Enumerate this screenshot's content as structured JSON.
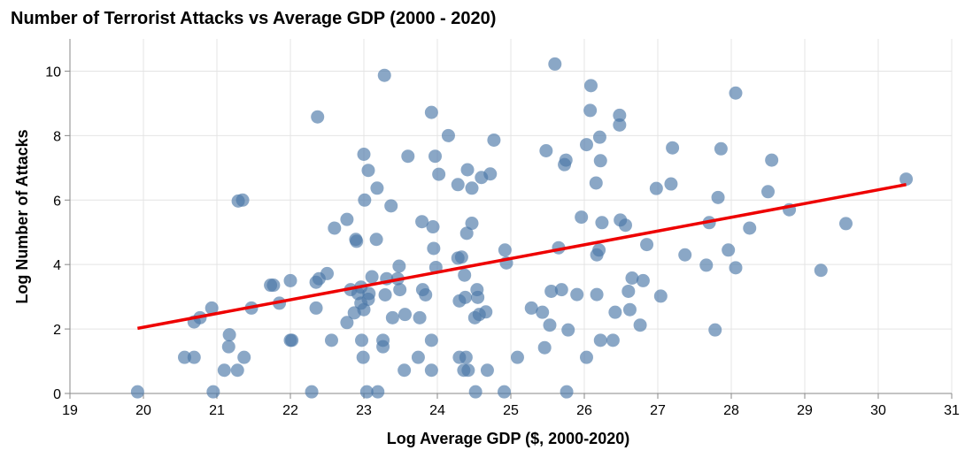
{
  "chart_data": {
    "type": "scatter",
    "title": "Number of Terrorist Attacks vs Average GDP (2000 - 2020)",
    "xlabel": "Log Average GDP ($, 2000-2020)",
    "ylabel": "Log Number of Attacks",
    "xlim": [
      19,
      31
    ],
    "ylim": [
      0,
      11
    ],
    "x_ticks": [
      19,
      20,
      21,
      22,
      23,
      24,
      25,
      26,
      27,
      28,
      29,
      30,
      31
    ],
    "y_ticks": [
      0,
      2,
      4,
      6,
      8,
      10
    ],
    "grid": true,
    "point_color": "#4c78a8",
    "trend_color": "#ee0000",
    "trend_line": {
      "x": [
        19.92,
        30.38
      ],
      "y": [
        2.02,
        6.48
      ]
    },
    "points": [
      [
        19.92,
        0.05
      ],
      [
        20.56,
        1.12
      ],
      [
        20.69,
        1.12
      ],
      [
        20.69,
        2.22
      ],
      [
        20.77,
        2.35
      ],
      [
        20.93,
        2.65
      ],
      [
        20.95,
        0.05
      ],
      [
        21.1,
        0.72
      ],
      [
        21.16,
        1.45
      ],
      [
        21.17,
        1.82
      ],
      [
        21.28,
        0.72
      ],
      [
        21.29,
        5.97
      ],
      [
        21.35,
        6.0
      ],
      [
        21.37,
        1.12
      ],
      [
        21.47,
        2.65
      ],
      [
        21.73,
        3.36
      ],
      [
        21.77,
        3.36
      ],
      [
        21.85,
        2.8
      ],
      [
        22.0,
        3.5
      ],
      [
        22.0,
        1.65
      ],
      [
        22.02,
        1.65
      ],
      [
        22.29,
        0.05
      ],
      [
        22.35,
        2.65
      ],
      [
        22.35,
        3.45
      ],
      [
        22.37,
        8.58
      ],
      [
        22.39,
        3.56
      ],
      [
        22.5,
        3.72
      ],
      [
        22.56,
        1.65
      ],
      [
        22.6,
        5.13
      ],
      [
        22.77,
        5.4
      ],
      [
        22.77,
        2.2
      ],
      [
        22.82,
        3.22
      ],
      [
        22.87,
        2.5
      ],
      [
        22.89,
        4.78
      ],
      [
        22.9,
        4.72
      ],
      [
        22.92,
        3.1
      ],
      [
        22.96,
        3.3
      ],
      [
        22.96,
        2.8
      ],
      [
        22.97,
        1.65
      ],
      [
        22.99,
        1.12
      ],
      [
        23.0,
        7.42
      ],
      [
        23.0,
        2.6
      ],
      [
        23.01,
        6.0
      ],
      [
        23.04,
        0.05
      ],
      [
        23.06,
        6.92
      ],
      [
        23.07,
        3.1
      ],
      [
        23.06,
        2.92
      ],
      [
        23.11,
        3.62
      ],
      [
        23.17,
        4.78
      ],
      [
        23.18,
        6.37
      ],
      [
        23.19,
        0.05
      ],
      [
        23.26,
        1.65
      ],
      [
        23.26,
        1.45
      ],
      [
        23.28,
        9.87
      ],
      [
        23.29,
        3.06
      ],
      [
        23.31,
        3.56
      ],
      [
        23.37,
        5.82
      ],
      [
        23.39,
        2.35
      ],
      [
        23.46,
        3.56
      ],
      [
        23.48,
        3.95
      ],
      [
        23.49,
        3.22
      ],
      [
        23.55,
        0.72
      ],
      [
        23.56,
        2.45
      ],
      [
        23.6,
        7.36
      ],
      [
        23.74,
        1.12
      ],
      [
        23.76,
        2.35
      ],
      [
        23.79,
        5.33
      ],
      [
        23.8,
        3.22
      ],
      [
        23.84,
        3.06
      ],
      [
        23.92,
        8.72
      ],
      [
        23.92,
        0.72
      ],
      [
        23.92,
        1.65
      ],
      [
        23.94,
        5.17
      ],
      [
        23.95,
        4.5
      ],
      [
        23.97,
        7.36
      ],
      [
        23.98,
        3.91
      ],
      [
        24.02,
        6.8
      ],
      [
        24.15,
        8.0
      ],
      [
        24.28,
        4.2
      ],
      [
        24.28,
        6.48
      ],
      [
        24.3,
        2.87
      ],
      [
        24.3,
        1.12
      ],
      [
        24.33,
        4.23
      ],
      [
        24.36,
        0.72
      ],
      [
        24.37,
        3.67
      ],
      [
        24.38,
        2.98
      ],
      [
        24.39,
        1.12
      ],
      [
        24.4,
        4.97
      ],
      [
        24.41,
        6.94
      ],
      [
        24.42,
        0.72
      ],
      [
        24.47,
        5.28
      ],
      [
        24.47,
        6.37
      ],
      [
        24.51,
        2.35
      ],
      [
        24.52,
        0.05
      ],
      [
        24.54,
        3.22
      ],
      [
        24.55,
        2.98
      ],
      [
        24.57,
        2.45
      ],
      [
        24.6,
        6.7
      ],
      [
        24.66,
        2.53
      ],
      [
        24.68,
        0.72
      ],
      [
        24.72,
        6.81
      ],
      [
        24.77,
        7.86
      ],
      [
        24.91,
        0.05
      ],
      [
        24.92,
        4.45
      ],
      [
        24.94,
        4.05
      ],
      [
        25.09,
        1.12
      ],
      [
        25.28,
        2.65
      ],
      [
        25.43,
        2.52
      ],
      [
        25.46,
        1.42
      ],
      [
        25.48,
        7.53
      ],
      [
        25.53,
        2.12
      ],
      [
        25.55,
        3.17
      ],
      [
        25.6,
        10.22
      ],
      [
        25.65,
        4.52
      ],
      [
        25.69,
        3.22
      ],
      [
        25.73,
        7.1
      ],
      [
        25.75,
        7.24
      ],
      [
        25.76,
        0.05
      ],
      [
        25.78,
        1.97
      ],
      [
        25.9,
        3.07
      ],
      [
        25.96,
        5.47
      ],
      [
        26.03,
        7.72
      ],
      [
        26.03,
        1.12
      ],
      [
        26.08,
        8.78
      ],
      [
        26.09,
        9.55
      ],
      [
        26.16,
        6.53
      ],
      [
        26.17,
        3.07
      ],
      [
        26.17,
        4.3
      ],
      [
        26.2,
        4.45
      ],
      [
        26.21,
        7.95
      ],
      [
        26.22,
        7.22
      ],
      [
        26.22,
        1.65
      ],
      [
        26.24,
        5.3
      ],
      [
        26.39,
        1.65
      ],
      [
        26.42,
        2.52
      ],
      [
        26.48,
        8.63
      ],
      [
        26.48,
        8.33
      ],
      [
        26.49,
        5.38
      ],
      [
        26.56,
        5.22
      ],
      [
        26.6,
        3.17
      ],
      [
        26.62,
        2.6
      ],
      [
        26.65,
        3.58
      ],
      [
        26.76,
        2.12
      ],
      [
        26.8,
        3.5
      ],
      [
        26.85,
        4.62
      ],
      [
        26.98,
        6.36
      ],
      [
        27.04,
        3.02
      ],
      [
        27.18,
        6.5
      ],
      [
        27.2,
        7.62
      ],
      [
        27.37,
        4.3
      ],
      [
        27.66,
        3.98
      ],
      [
        27.7,
        5.3
      ],
      [
        27.78,
        1.97
      ],
      [
        27.82,
        6.08
      ],
      [
        27.86,
        7.59
      ],
      [
        27.96,
        4.45
      ],
      [
        28.06,
        9.32
      ],
      [
        28.06,
        3.9
      ],
      [
        28.25,
        5.13
      ],
      [
        28.5,
        6.26
      ],
      [
        28.55,
        7.24
      ],
      [
        28.79,
        5.7
      ],
      [
        29.22,
        3.82
      ],
      [
        29.56,
        5.27
      ],
      [
        30.38,
        6.65
      ]
    ]
  }
}
